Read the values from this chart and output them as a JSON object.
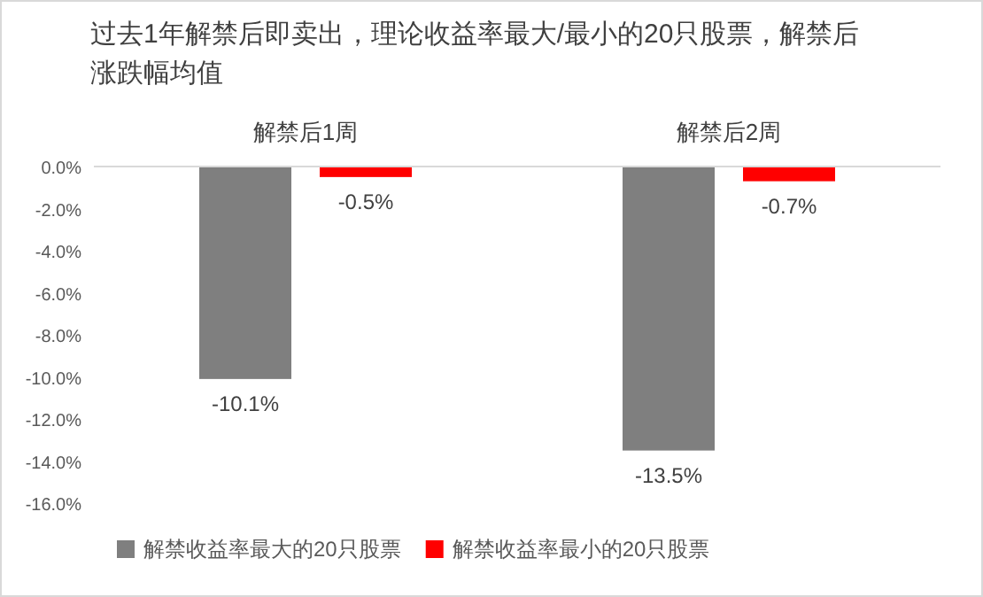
{
  "chart_data": {
    "type": "bar",
    "title": "过去1年解禁后即卖出，理论收益率最大/最小的20只股票，解禁后涨跌幅均值",
    "categories": [
      "解禁后1周",
      "解禁后2周"
    ],
    "series": [
      {
        "name": "解禁收益率最大的20只股票",
        "color": "#7f7f7f",
        "values": [
          -10.1,
          -13.5
        ],
        "value_labels": [
          "-10.1%",
          "-13.5%"
        ]
      },
      {
        "name": "解禁收益率最小的20只股票",
        "color": "#ff0000",
        "values": [
          -0.5,
          -0.7
        ],
        "value_labels": [
          "-0.5%",
          "-0.7%"
        ]
      }
    ],
    "ylim": [
      -16,
      0
    ],
    "yticks": [
      {
        "value": 0,
        "label": "0.0%"
      },
      {
        "value": -2,
        "label": "-2.0%"
      },
      {
        "value": -4,
        "label": "-4.0%"
      },
      {
        "value": -6,
        "label": "-6.0%"
      },
      {
        "value": -8,
        "label": "-8.0%"
      },
      {
        "value": -10,
        "label": "-10.0%"
      },
      {
        "value": -12,
        "label": "-12.0%"
      },
      {
        "value": -14,
        "label": "-14.0%"
      },
      {
        "value": -16,
        "label": "-16.0%"
      }
    ],
    "grid": false,
    "legend": "bottom"
  }
}
